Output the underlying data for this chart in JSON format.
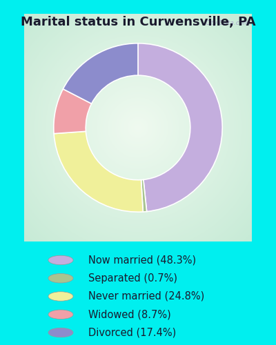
{
  "title": "Marital status in Curwensville, PA",
  "slices": [
    48.3,
    0.7,
    24.8,
    8.7,
    17.4
  ],
  "labels": [
    "Now married (48.3%)",
    "Separated (0.7%)",
    "Never married (24.8%)",
    "Widowed (8.7%)",
    "Divorced (17.4%)"
  ],
  "colors": [
    "#c4aede",
    "#a8c490",
    "#f0f09a",
    "#f0a0a8",
    "#8c8ccc"
  ],
  "bg_color_outer": "#00efef",
  "title_fontsize": 13,
  "legend_fontsize": 10.5,
  "watermark": "City-Data.com",
  "title_color": "#1a1a2e"
}
